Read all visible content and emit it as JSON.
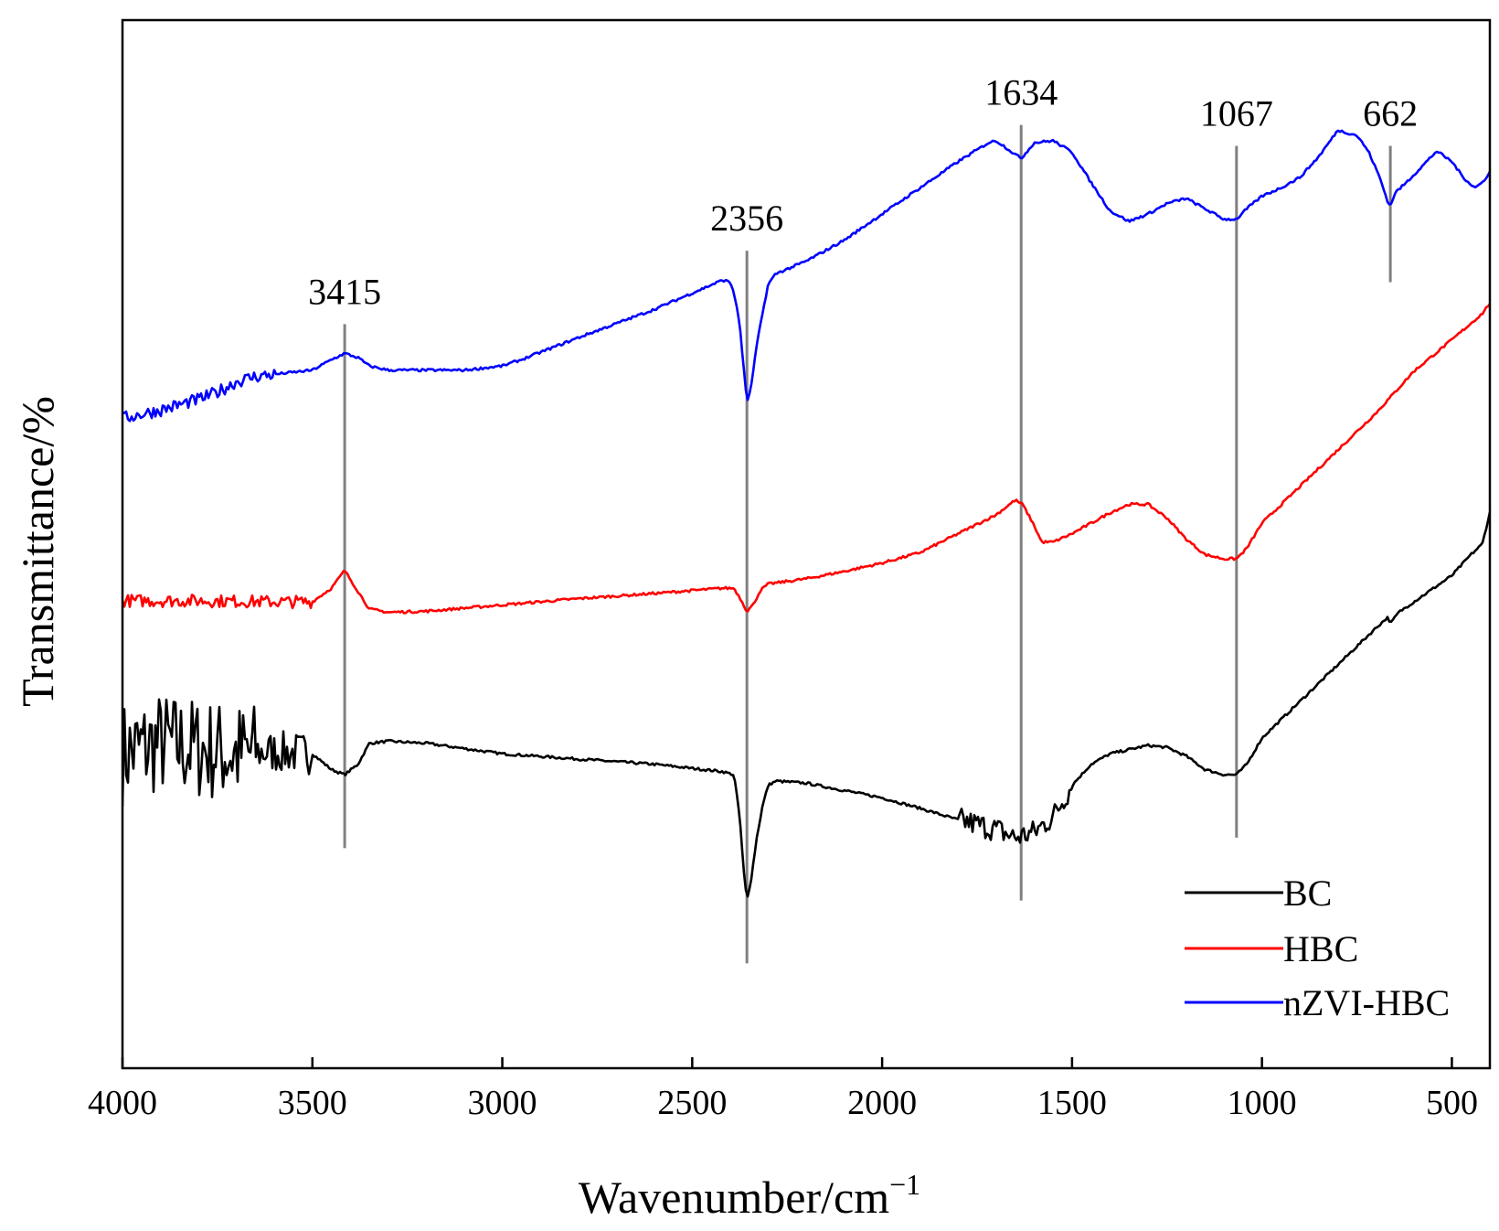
{
  "chart_data": {
    "type": "line",
    "title": "",
    "xlabel": "Wavenumber/cm",
    "xlabel_superscript": "−1",
    "ylabel": "Transmittance/%",
    "xlim": [
      4000,
      400
    ],
    "x_reversed": true,
    "ylim": [
      0,
      100
    ],
    "y_ticks_shown": false,
    "grid": false,
    "x_ticks": [
      4000,
      3500,
      3000,
      2500,
      2000,
      1500,
      1000,
      500
    ],
    "x_tick_labels": [
      "4000",
      "3500",
      "3000",
      "2500",
      "2000",
      "1500",
      "1000",
      "500"
    ],
    "peak_markers": [
      {
        "wavenumber": 3415,
        "label": "3415",
        "y_bottom": 21,
        "y_top": 71
      },
      {
        "wavenumber": 2356,
        "label": "2356",
        "y_bottom": 10,
        "y_top": 78
      },
      {
        "wavenumber": 1634,
        "label": "1634",
        "y_bottom": 16,
        "y_top": 90
      },
      {
        "wavenumber": 1067,
        "label": "1067",
        "y_bottom": 22,
        "y_top": 88
      },
      {
        "wavenumber": 662,
        "label": "662",
        "y_bottom": 75,
        "y_top": 88
      }
    ],
    "legend": {
      "placement": "bottom-right",
      "entries": [
        "BC",
        "HBC",
        "nZVI-HBC"
      ]
    },
    "series": [
      {
        "name": "BC",
        "color": "#000000",
        "noise": [
          [
            4000,
            3650,
            5
          ],
          [
            3650,
            3500,
            2
          ],
          [
            1800,
            1500,
            1.2
          ]
        ],
        "points": [
          [
            4000,
            30
          ],
          [
            3900,
            31
          ],
          [
            3800,
            30.5
          ],
          [
            3700,
            30
          ],
          [
            3600,
            30.2
          ],
          [
            3500,
            30
          ],
          [
            3450,
            28.5
          ],
          [
            3415,
            28
          ],
          [
            3380,
            29
          ],
          [
            3350,
            31
          ],
          [
            3300,
            31.2
          ],
          [
            3200,
            31
          ],
          [
            3000,
            30
          ],
          [
            2800,
            29.5
          ],
          [
            2600,
            29
          ],
          [
            2420,
            28.3
          ],
          [
            2390,
            28
          ],
          [
            2375,
            24
          ],
          [
            2365,
            19
          ],
          [
            2356,
            16
          ],
          [
            2345,
            18
          ],
          [
            2330,
            22
          ],
          [
            2315,
            25
          ],
          [
            2300,
            27
          ],
          [
            2280,
            27.4
          ],
          [
            2200,
            27.2
          ],
          [
            2100,
            26.5
          ],
          [
            2000,
            25.8
          ],
          [
            1900,
            24.8
          ],
          [
            1800,
            23.7
          ],
          [
            1700,
            22.8
          ],
          [
            1650,
            22
          ],
          [
            1600,
            22.5
          ],
          [
            1550,
            24
          ],
          [
            1500,
            27
          ],
          [
            1450,
            29
          ],
          [
            1400,
            30
          ],
          [
            1300,
            30.8
          ],
          [
            1250,
            30.6
          ],
          [
            1200,
            29.8
          ],
          [
            1150,
            28.5
          ],
          [
            1100,
            28
          ],
          [
            1067,
            28
          ],
          [
            1040,
            29
          ],
          [
            1000,
            31.5
          ],
          [
            900,
            35
          ],
          [
            800,
            38.5
          ],
          [
            700,
            42
          ],
          [
            670,
            43
          ],
          [
            660,
            42.5
          ],
          [
            640,
            43.5
          ],
          [
            600,
            44.5
          ],
          [
            500,
            47
          ],
          [
            450,
            49
          ],
          [
            420,
            50
          ],
          [
            400,
            53
          ]
        ]
      },
      {
        "name": "HBC",
        "color": "#ff0000",
        "noise": [
          [
            4000,
            3500,
            0.6
          ]
        ],
        "points": [
          [
            4000,
            44.6
          ],
          [
            3800,
            44.6
          ],
          [
            3600,
            44.5
          ],
          [
            3500,
            44.5
          ],
          [
            3450,
            45.8
          ],
          [
            3415,
            47.5
          ],
          [
            3380,
            45.5
          ],
          [
            3350,
            43.8
          ],
          [
            3300,
            43.5
          ],
          [
            3200,
            43.6
          ],
          [
            3000,
            44.2
          ],
          [
            2900,
            44.5
          ],
          [
            2800,
            44.8
          ],
          [
            2600,
            45.3
          ],
          [
            2420,
            45.8
          ],
          [
            2390,
            45.8
          ],
          [
            2370,
            44.6
          ],
          [
            2356,
            43.6
          ],
          [
            2340,
            44.2
          ],
          [
            2320,
            45.6
          ],
          [
            2300,
            46.2
          ],
          [
            2200,
            46.7
          ],
          [
            2100,
            47.4
          ],
          [
            2000,
            48.2
          ],
          [
            1900,
            49.2
          ],
          [
            1800,
            51
          ],
          [
            1700,
            52.8
          ],
          [
            1650,
            54.2
          ],
          [
            1630,
            53.8
          ],
          [
            1600,
            51.8
          ],
          [
            1580,
            50.2
          ],
          [
            1550,
            50.2
          ],
          [
            1500,
            51
          ],
          [
            1400,
            53
          ],
          [
            1350,
            53.8
          ],
          [
            1300,
            53.8
          ],
          [
            1250,
            52.5
          ],
          [
            1200,
            50.5
          ],
          [
            1150,
            49
          ],
          [
            1100,
            48.6
          ],
          [
            1067,
            48.6
          ],
          [
            1040,
            49.6
          ],
          [
            1000,
            52
          ],
          [
            900,
            55.5
          ],
          [
            800,
            59
          ],
          [
            700,
            62.5
          ],
          [
            600,
            66.5
          ],
          [
            500,
            69.5
          ],
          [
            420,
            72
          ],
          [
            400,
            73
          ]
        ]
      },
      {
        "name": "nZVI-HBC",
        "color": "#0000ff",
        "noise": [
          [
            4000,
            3600,
            0.6
          ]
        ],
        "points": [
          [
            4000,
            62
          ],
          [
            3900,
            62.8
          ],
          [
            3800,
            63.8
          ],
          [
            3750,
            64.5
          ],
          [
            3700,
            65.5
          ],
          [
            3650,
            66
          ],
          [
            3600,
            66.2
          ],
          [
            3500,
            66.6
          ],
          [
            3450,
            67.6
          ],
          [
            3415,
            68.2
          ],
          [
            3380,
            67.8
          ],
          [
            3350,
            67
          ],
          [
            3300,
            66.6
          ],
          [
            3100,
            66.6
          ],
          [
            3000,
            67
          ],
          [
            2950,
            67.6
          ],
          [
            2900,
            68.3
          ],
          [
            2800,
            69.7
          ],
          [
            2600,
            72.4
          ],
          [
            2420,
            75.2
          ],
          [
            2400,
            75
          ],
          [
            2390,
            74
          ],
          [
            2375,
            71
          ],
          [
            2365,
            67
          ],
          [
            2356,
            63.5
          ],
          [
            2345,
            65
          ],
          [
            2330,
            69
          ],
          [
            2315,
            72
          ],
          [
            2300,
            74.8
          ],
          [
            2280,
            75.8
          ],
          [
            2200,
            77
          ],
          [
            2100,
            79
          ],
          [
            2000,
            81.5
          ],
          [
            1900,
            84
          ],
          [
            1800,
            86.5
          ],
          [
            1720,
            88.3
          ],
          [
            1700,
            88.5
          ],
          [
            1680,
            88
          ],
          [
            1650,
            87.2
          ],
          [
            1634,
            86.8
          ],
          [
            1620,
            87.4
          ],
          [
            1600,
            88.3
          ],
          [
            1550,
            88.5
          ],
          [
            1500,
            87.4
          ],
          [
            1450,
            84.5
          ],
          [
            1400,
            81.8
          ],
          [
            1350,
            80.8
          ],
          [
            1300,
            81.5
          ],
          [
            1250,
            82.5
          ],
          [
            1200,
            83
          ],
          [
            1150,
            82
          ],
          [
            1100,
            81
          ],
          [
            1067,
            81
          ],
          [
            1040,
            82
          ],
          [
            1000,
            83.2
          ],
          [
            950,
            84
          ],
          [
            900,
            85
          ],
          [
            850,
            87
          ],
          [
            800,
            89.5
          ],
          [
            750,
            89
          ],
          [
            720,
            87.5
          ],
          [
            690,
            85
          ],
          [
            670,
            82.8
          ],
          [
            662,
            82.2
          ],
          [
            650,
            83.5
          ],
          [
            620,
            84.5
          ],
          [
            580,
            86
          ],
          [
            540,
            87.5
          ],
          [
            500,
            86.5
          ],
          [
            470,
            85
          ],
          [
            440,
            84
          ],
          [
            420,
            84.5
          ],
          [
            400,
            85.5
          ]
        ]
      }
    ]
  }
}
